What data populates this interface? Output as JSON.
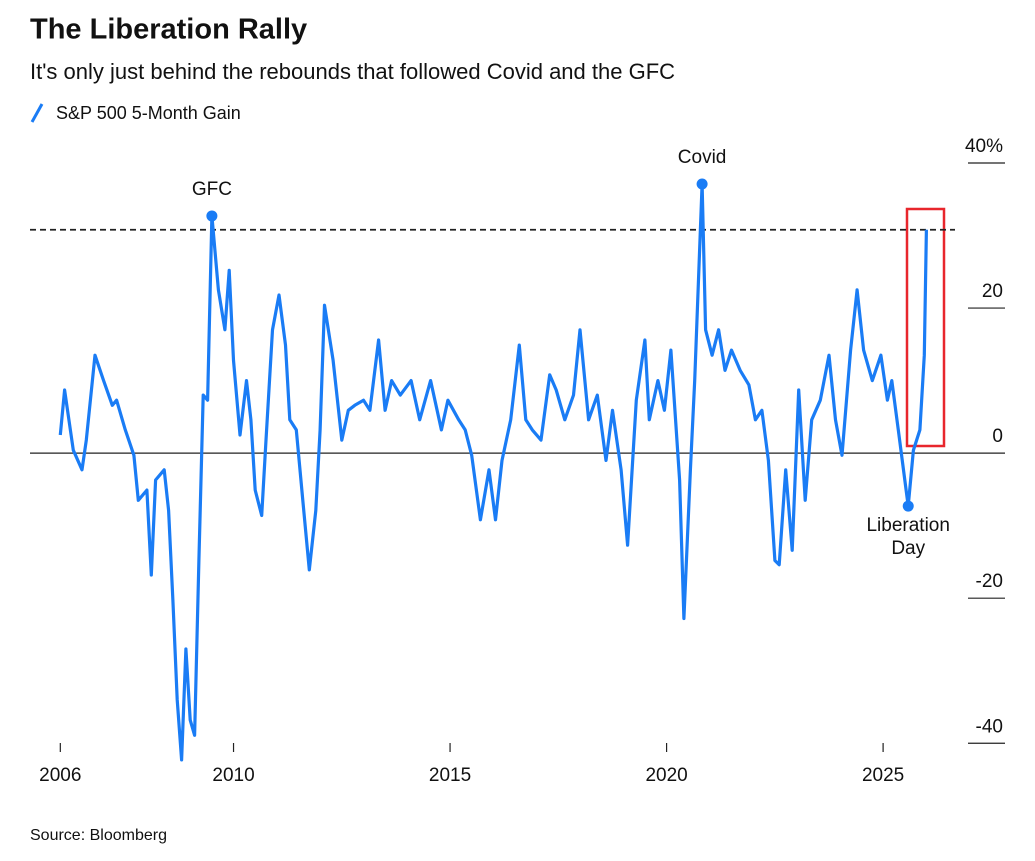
{
  "chart_data": {
    "type": "line",
    "title": "The Liberation Rally",
    "subtitle": "It's only just behind the rebounds that followed Covid and the GFC",
    "source": "Source: Bloomberg",
    "x": [
      2006.0,
      2006.1,
      2006.3,
      2006.5,
      2006.6,
      2006.8,
      2007.0,
      2007.2,
      2007.3,
      2007.5,
      2007.7,
      2007.8,
      2008.0,
      2008.1,
      2008.2,
      2008.4,
      2008.5,
      2008.6,
      2008.7,
      2008.8,
      2008.9,
      2009.0,
      2009.1,
      2009.2,
      2009.3,
      2009.4,
      2009.5,
      2009.65,
      2009.8,
      2009.9,
      2010.0,
      2010.15,
      2010.3,
      2010.4,
      2010.5,
      2010.65,
      2010.75,
      2010.9,
      2011.05,
      2011.2,
      2011.3,
      2011.45,
      2011.6,
      2011.75,
      2011.9,
      2012.0,
      2012.1,
      2012.3,
      2012.5,
      2012.65,
      2012.8,
      2013.0,
      2013.15,
      2013.35,
      2013.5,
      2013.65,
      2013.85,
      2014.1,
      2014.3,
      2014.55,
      2014.8,
      2014.95,
      2015.2,
      2015.35,
      2015.5,
      2015.7,
      2015.9,
      2016.05,
      2016.2,
      2016.4,
      2016.6,
      2016.75,
      2016.9,
      2017.1,
      2017.3,
      2017.45,
      2017.65,
      2017.85,
      2018.0,
      2018.2,
      2018.4,
      2018.6,
      2018.75,
      2018.95,
      2019.1,
      2019.3,
      2019.5,
      2019.6,
      2019.8,
      2019.95,
      2020.1,
      2020.3,
      2020.4,
      2020.55,
      2020.65,
      2020.82,
      2020.9,
      2021.05,
      2021.2,
      2021.35,
      2021.5,
      2021.7,
      2021.9,
      2022.05,
      2022.2,
      2022.35,
      2022.5,
      2022.6,
      2022.75,
      2022.9,
      2023.05,
      2023.2,
      2023.35,
      2023.55,
      2023.75,
      2023.9,
      2024.05,
      2024.25,
      2024.4,
      2024.55,
      2024.75,
      2024.95,
      2025.1,
      2025.2,
      2025.35,
      2025.5,
      2025.58,
      2025.7,
      2025.85,
      2025.95,
      2026.0
    ],
    "series": [
      {
        "name": "S&P 500 5-Month Gain",
        "color": "#1a7cf5",
        "values": [
          2.5,
          8.7,
          0.4,
          -2.3,
          1.8,
          13.5,
          10,
          6.6,
          7.3,
          3.2,
          -0.3,
          -6.5,
          -5.1,
          -16.8,
          -3.7,
          -2.3,
          -7.9,
          -20.3,
          -34,
          -42.3,
          -27,
          -36.8,
          -38.9,
          -14.8,
          8,
          7.3,
          32.7,
          22.5,
          17,
          25.2,
          12.8,
          2.5,
          10,
          4.6,
          -5.1,
          -8.6,
          1.8,
          17,
          21.8,
          14.9,
          4.6,
          3.2,
          -6.5,
          -16.1,
          -7.9,
          3.2,
          20.4,
          12.8,
          1.8,
          5.9,
          6.6,
          7.3,
          5.9,
          15.6,
          5.9,
          10,
          8,
          10,
          4.6,
          10,
          3.2,
          7.3,
          4.6,
          3.2,
          -0.3,
          -9.2,
          -2.3,
          -9.2,
          -1,
          4.6,
          14.9,
          4.6,
          3.2,
          1.8,
          10.8,
          8.7,
          4.6,
          8,
          17,
          4.6,
          8,
          -1,
          5.9,
          -2.3,
          -12.7,
          7.3,
          15.6,
          4.6,
          10,
          5.9,
          14.2,
          -3.7,
          -22.8,
          -2.3,
          10,
          37.1,
          17,
          13.5,
          17,
          11.4,
          14.2,
          11.4,
          9.4,
          4.6,
          5.9,
          -1,
          -14.8,
          -15.4,
          -2.3,
          -13.4,
          8.7,
          -6.5,
          4.6,
          7.3,
          13.5,
          4.6,
          -0.3,
          14.2,
          22.5,
          14.2,
          10,
          13.5,
          7.3,
          10,
          3.2,
          -3.7,
          -7.3,
          0.4,
          3.2,
          13.5,
          30.8
        ]
      }
    ],
    "annotations": [
      {
        "label": "GFC",
        "x": 2009.5,
        "y": 32.7
      },
      {
        "label": "Covid",
        "x": 2020.82,
        "y": 37.1
      },
      {
        "label": "Liberation Day",
        "x": 2025.58,
        "y": -7.3
      }
    ],
    "reference_line": 30.8,
    "xlim": [
      2005.3,
      2026.66
    ],
    "xticks": [
      2006,
      2010,
      2015,
      2020,
      2025
    ],
    "ylim": [
      -43,
      40
    ],
    "yticks": [
      {
        "value": 40,
        "label": "40%"
      },
      20,
      0,
      -20,
      -40
    ]
  }
}
